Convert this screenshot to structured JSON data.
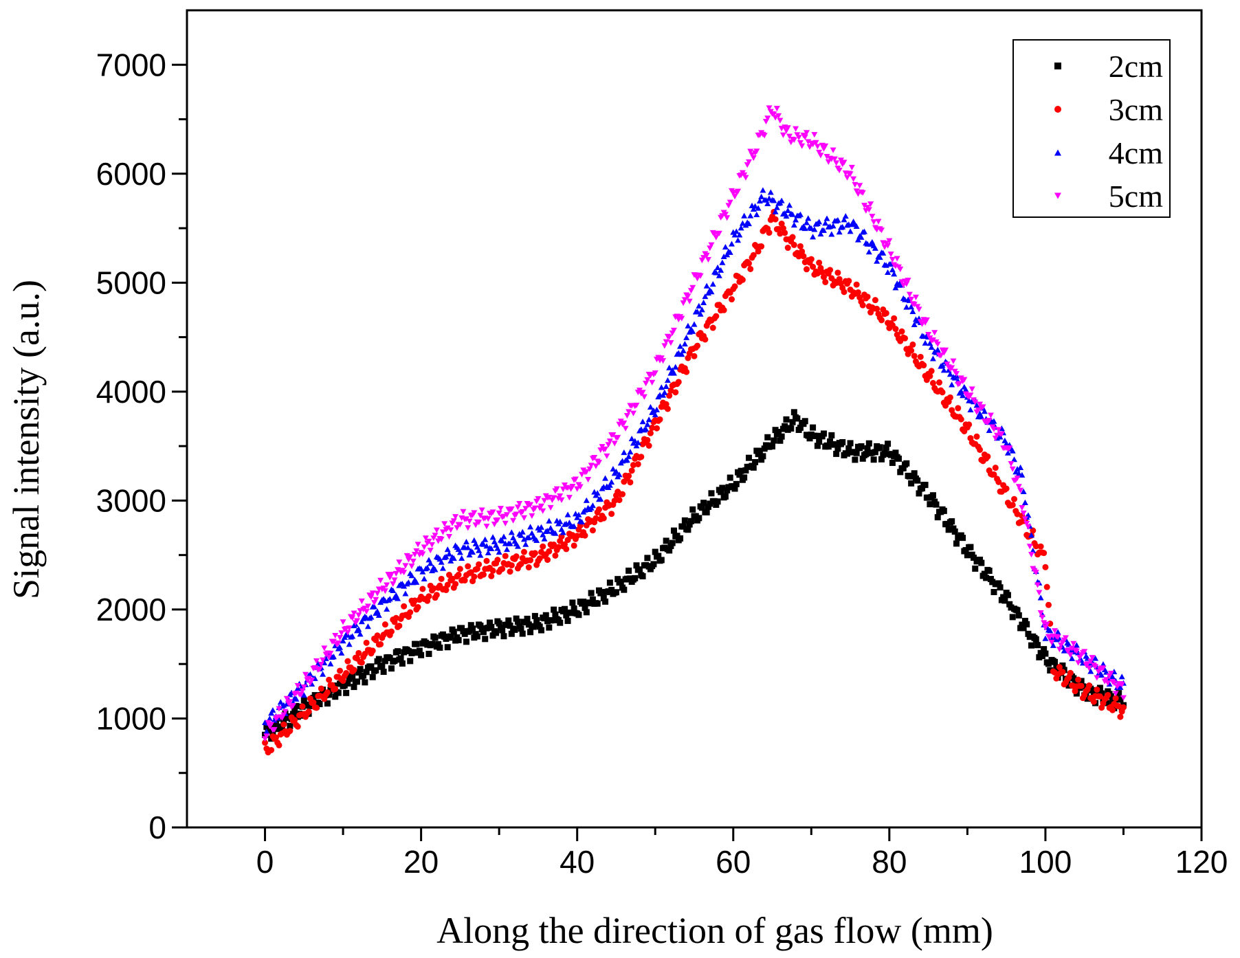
{
  "chart_data": {
    "type": "scatter",
    "title": "",
    "xlabel": "Along the direction of gas flow (mm)",
    "ylabel": "Signal intensity (a.u.)",
    "xlim": [
      -10,
      120
    ],
    "ylim": [
      0,
      7500
    ],
    "xticks": [
      0,
      20,
      40,
      60,
      80,
      100,
      120
    ],
    "yticks": [
      0,
      1000,
      2000,
      3000,
      4000,
      5000,
      6000,
      7000
    ],
    "xtick_labels": [
      "0",
      "20",
      "40",
      "60",
      "80",
      "100",
      "120"
    ],
    "ytick_labels": [
      "0",
      "1000",
      "2000",
      "3000",
      "4000",
      "5000",
      "6000",
      "7000"
    ],
    "legend_position": "top-right",
    "grid": false,
    "series": [
      {
        "name": "2cm",
        "color": "#000000",
        "marker": "square",
        "x": [
          0,
          5,
          10,
          15,
          20,
          25,
          30,
          35,
          40,
          45,
          50,
          55,
          60,
          65,
          68,
          70,
          75,
          80,
          85,
          90,
          95,
          100,
          105,
          110
        ],
        "y": [
          850,
          1100,
          1300,
          1500,
          1650,
          1780,
          1830,
          1870,
          2000,
          2200,
          2450,
          2850,
          3150,
          3550,
          3750,
          3600,
          3450,
          3450,
          3050,
          2550,
          2100,
          1550,
          1250,
          1150
        ]
      },
      {
        "name": "3cm",
        "color": "#ff0000",
        "marker": "circle",
        "x": [
          0,
          5,
          10,
          15,
          20,
          25,
          30,
          35,
          40,
          45,
          50,
          55,
          60,
          63,
          65,
          67,
          70,
          75,
          80,
          85,
          90,
          95,
          100,
          101,
          105,
          110
        ],
        "y": [
          700,
          1050,
          1400,
          1750,
          2100,
          2300,
          2400,
          2480,
          2680,
          3000,
          3700,
          4400,
          4950,
          5300,
          5600,
          5400,
          5150,
          4950,
          4650,
          4150,
          3650,
          3050,
          2450,
          1450,
          1250,
          1080
        ]
      },
      {
        "name": "4cm",
        "color": "#0000ff",
        "marker": "triangle-up",
        "x": [
          0,
          5,
          10,
          15,
          20,
          25,
          30,
          35,
          40,
          45,
          50,
          55,
          60,
          64,
          67,
          70,
          75,
          80,
          85,
          90,
          95,
          97,
          100,
          105,
          110
        ],
        "y": [
          950,
          1300,
          1700,
          2050,
          2350,
          2550,
          2600,
          2700,
          2820,
          3250,
          3850,
          4650,
          5400,
          5800,
          5650,
          5500,
          5550,
          5150,
          4450,
          3950,
          3550,
          3200,
          1800,
          1550,
          1300
        ]
      },
      {
        "name": "5cm",
        "color": "#ff00ff",
        "marker": "triangle-down",
        "x": [
          0,
          5,
          10,
          15,
          20,
          25,
          30,
          35,
          40,
          45,
          50,
          55,
          60,
          63,
          65,
          67,
          70,
          75,
          80,
          85,
          90,
          95,
          97,
          100,
          105,
          110
        ],
        "y": [
          850,
          1300,
          1800,
          2200,
          2550,
          2820,
          2850,
          2950,
          3150,
          3600,
          4200,
          5000,
          5800,
          6250,
          6600,
          6350,
          6300,
          6000,
          5300,
          4550,
          4000,
          3500,
          3000,
          1800,
          1550,
          1250
        ]
      }
    ]
  }
}
